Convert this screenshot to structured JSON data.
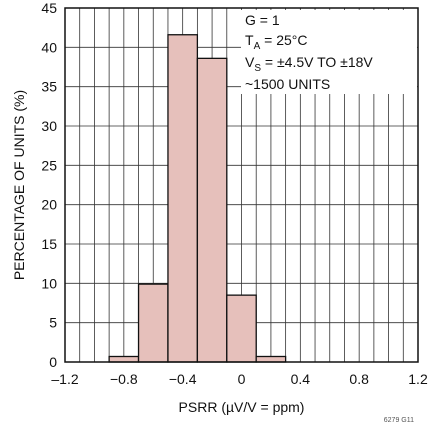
{
  "chart_data": {
    "type": "bar",
    "title": "",
    "xlabel": "PSRR (µV/V = ppm)",
    "ylabel": "PERCENTAGE OF UNITS (%)",
    "xlim": [
      -1.2,
      1.2
    ],
    "ylim": [
      0,
      45
    ],
    "x_ticks": [
      "–1.2",
      "−0.8",
      "−0.4",
      "0",
      "0.4",
      "0.8",
      "1.2"
    ],
    "y_ticks": [
      "0",
      "5",
      "10",
      "15",
      "20",
      "25",
      "30",
      "35",
      "40",
      "45"
    ],
    "grid": true,
    "bin_width": 0.2,
    "bins": [
      {
        "x0": -0.9,
        "x1": -0.7,
        "value": 0.7
      },
      {
        "x0": -0.7,
        "x1": -0.5,
        "value": 9.9
      },
      {
        "x0": -0.5,
        "x1": -0.3,
        "value": 41.6
      },
      {
        "x0": -0.3,
        "x1": -0.1,
        "value": 38.6
      },
      {
        "x0": -0.1,
        "x1": 0.1,
        "value": 8.5
      },
      {
        "x0": 0.1,
        "x1": 0.3,
        "value": 0.7
      }
    ],
    "bar_fill": "#e6c0bb",
    "bar_stroke": "#111111",
    "annotations": {
      "gain": "G = 1",
      "temp_prefix": "T",
      "temp_sub": "A",
      "temp_rest": " = 25°C",
      "supply_prefix": "V",
      "supply_sub": "S",
      "supply_rest": " = ±4.5V TO ±18V",
      "units": "~1500 UNITS"
    },
    "figure_id": "6279 G11"
  }
}
